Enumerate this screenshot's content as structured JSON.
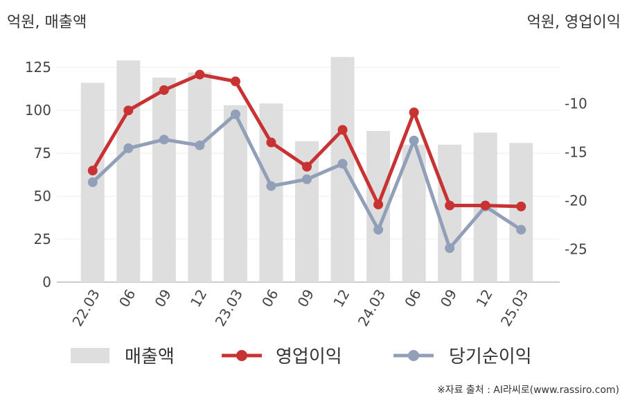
{
  "chart_data": {
    "type": "bar",
    "title": "",
    "left_axis_label": "억원, 매출액",
    "right_axis_label": "억원, 영업이익",
    "categories": [
      "22.03",
      "06",
      "09",
      "12",
      "23.03",
      "06",
      "09",
      "12",
      "24.03",
      "06",
      "09",
      "12",
      "25.03"
    ],
    "left_ylim": [
      0,
      140
    ],
    "left_yticks": [
      0,
      25,
      50,
      75,
      100,
      125
    ],
    "right_ylim": [
      -28.4,
      -3.6
    ],
    "right_yticks": [
      -25,
      -20,
      -15,
      -10
    ],
    "grid": true,
    "legend_position": "bottom",
    "series": [
      {
        "name": "매출액",
        "kind": "bar",
        "axis": "left",
        "color": "#dedede",
        "values": [
          116,
          129,
          119,
          122,
          103,
          104,
          82,
          131,
          88,
          80,
          80,
          87,
          81
        ]
      },
      {
        "name": "영업이익",
        "kind": "line",
        "axis": "right",
        "color": "#c83232",
        "values": [
          -16.9,
          -10.7,
          -8.6,
          -7.0,
          -7.7,
          -14.0,
          -16.5,
          -12.7,
          -20.4,
          -10.9,
          -20.5,
          -20.5,
          -20.6
        ]
      },
      {
        "name": "당기순이익",
        "kind": "line",
        "axis": "right",
        "color": "#929fb9",
        "values": [
          -18.1,
          -14.6,
          -13.7,
          -14.3,
          -11.1,
          -18.5,
          -17.8,
          -16.2,
          -23.0,
          -13.8,
          -24.9,
          -20.6,
          -23.0
        ]
      }
    ]
  },
  "source": "※자료 출처 : AI라씨로(www.rassiro.com)"
}
